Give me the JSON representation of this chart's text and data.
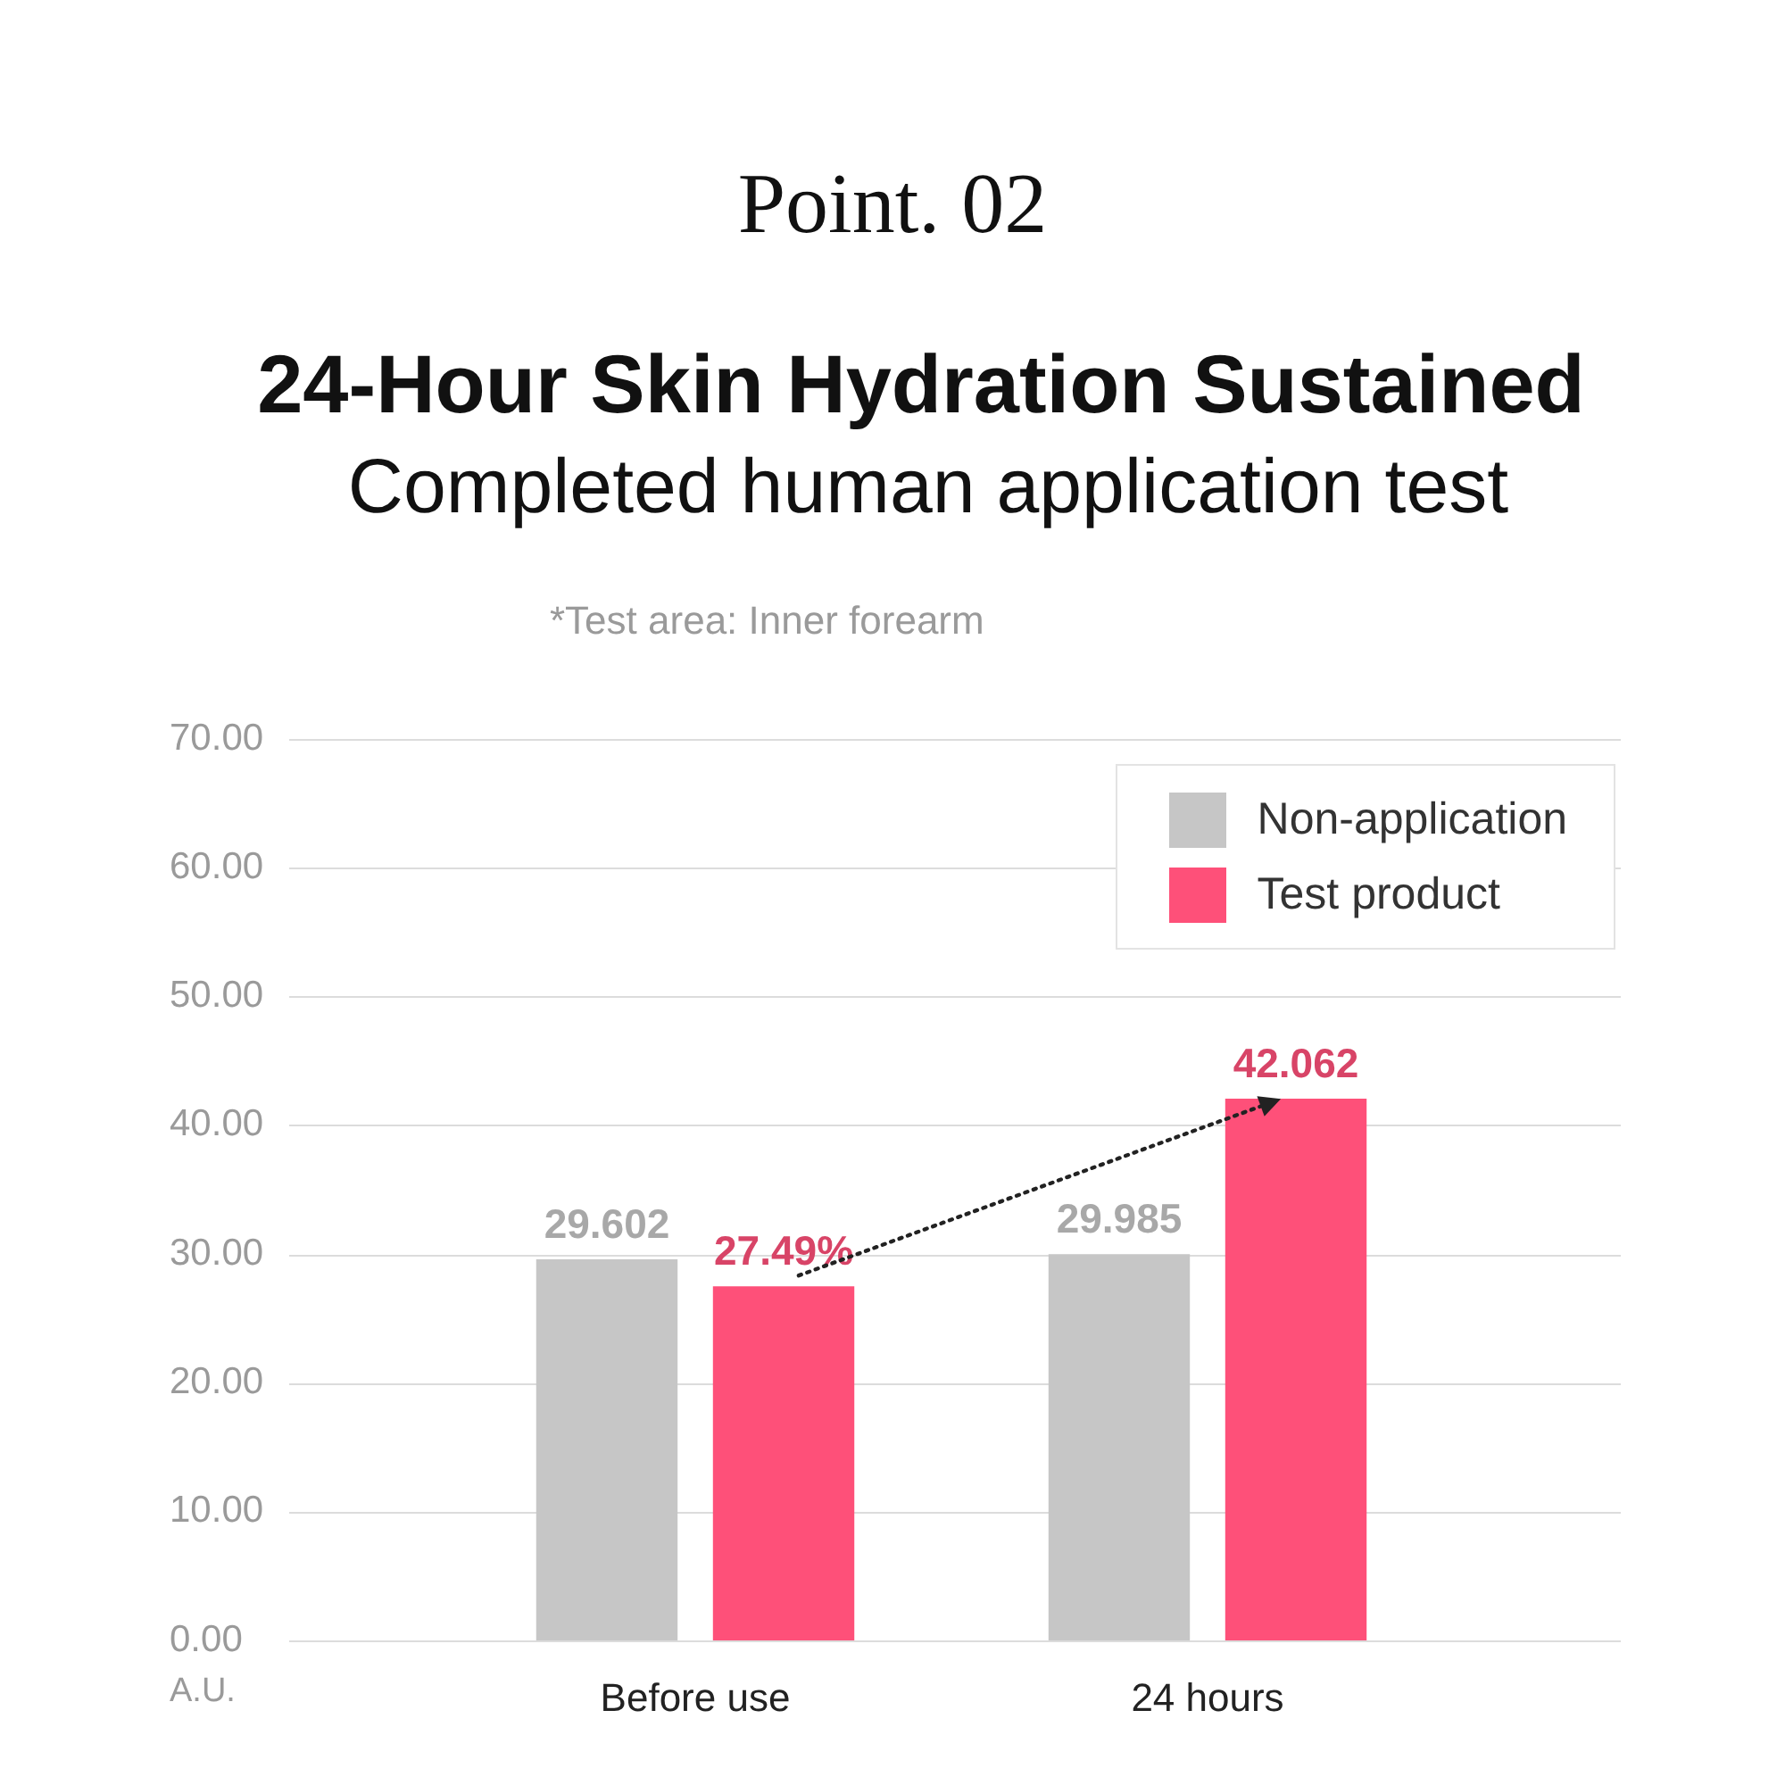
{
  "chart_data": {
    "type": "bar",
    "title": "24-Hour Skin Hydration Sustained",
    "subtitle": "Completed human application test",
    "annotations": [
      "Point. 02",
      "*Test area: Inner forearm"
    ],
    "ylabel": "A.U.",
    "categories": [
      "Before use",
      "24 hours"
    ],
    "series": [
      {
        "name": "Non-application",
        "color": "#c6c6c6",
        "values": [
          29.602,
          29.985
        ],
        "value_labels": [
          "29.602",
          "29.985"
        ]
      },
      {
        "name": "Test product",
        "color": "#fe5079",
        "values": [
          27.49,
          42.062
        ],
        "value_labels": [
          "27.49%",
          "42.062"
        ]
      }
    ],
    "ylim": [
      0,
      70
    ],
    "yticks": [
      {
        "value": 0,
        "label": "0.00"
      },
      {
        "value": 10,
        "label": "10.00"
      },
      {
        "value": 20,
        "label": "20.00"
      },
      {
        "value": 30,
        "label": "30.00"
      },
      {
        "value": 40,
        "label": "40.00"
      },
      {
        "value": 50,
        "label": "50.00"
      },
      {
        "value": 60,
        "label": "60.00"
      },
      {
        "value": 70,
        "label": "70.00"
      }
    ],
    "grid": "y",
    "legend": "top right"
  }
}
